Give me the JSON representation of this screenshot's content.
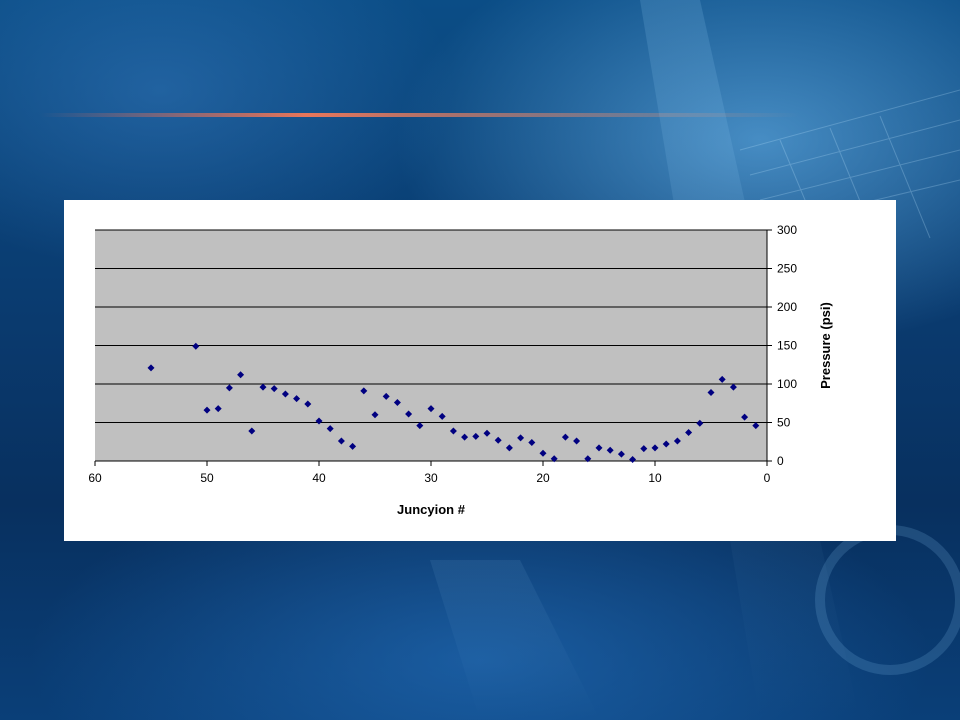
{
  "colors": {
    "plot_background": "#c0c0c0",
    "marker": "#000080",
    "gridline": "#000000"
  },
  "chart_data": {
    "type": "scatter",
    "title": "",
    "xlabel": "Juncyion #",
    "ylabel": "Pressure (psi)",
    "xlim": [
      60,
      0
    ],
    "ylim": [
      0,
      300
    ],
    "x_reversed": true,
    "y_axis_side": "right",
    "grid": "horizontal",
    "legend": "none",
    "marker": "diamond",
    "x_ticks": [
      "60",
      "50",
      "40",
      "30",
      "20",
      "10",
      "0"
    ],
    "y_ticks": [
      "0",
      "50",
      "100",
      "150",
      "200",
      "250",
      "300"
    ],
    "series": [
      {
        "points": [
          [
            55,
            121
          ],
          [
            51,
            149
          ],
          [
            50,
            66
          ],
          [
            49,
            68
          ],
          [
            48,
            95
          ],
          [
            47,
            112
          ],
          [
            46,
            39
          ],
          [
            45,
            96
          ],
          [
            44,
            94
          ],
          [
            43,
            87
          ],
          [
            42,
            81
          ],
          [
            41,
            74
          ],
          [
            40,
            52
          ],
          [
            39,
            42
          ],
          [
            38,
            26
          ],
          [
            37,
            19
          ],
          [
            36,
            91
          ],
          [
            35,
            60
          ],
          [
            34,
            84
          ],
          [
            33,
            76
          ],
          [
            32,
            61
          ],
          [
            31,
            46
          ],
          [
            30,
            68
          ],
          [
            29,
            58
          ],
          [
            28,
            39
          ],
          [
            27,
            31
          ],
          [
            26,
            32
          ],
          [
            25,
            36
          ],
          [
            24,
            27
          ],
          [
            23,
            17
          ],
          [
            22,
            30
          ],
          [
            21,
            24
          ],
          [
            20,
            10
          ],
          [
            19,
            3
          ],
          [
            18,
            31
          ],
          [
            17,
            26
          ],
          [
            16,
            3
          ],
          [
            15,
            17
          ],
          [
            14,
            14
          ],
          [
            13,
            9
          ],
          [
            12,
            2
          ],
          [
            11,
            16
          ],
          [
            10,
            17
          ],
          [
            9,
            22
          ],
          [
            8,
            26
          ],
          [
            7,
            37
          ],
          [
            6,
            49
          ],
          [
            5,
            89
          ],
          [
            4,
            106
          ],
          [
            3,
            96
          ],
          [
            2,
            57
          ],
          [
            1,
            46
          ]
        ]
      }
    ]
  }
}
